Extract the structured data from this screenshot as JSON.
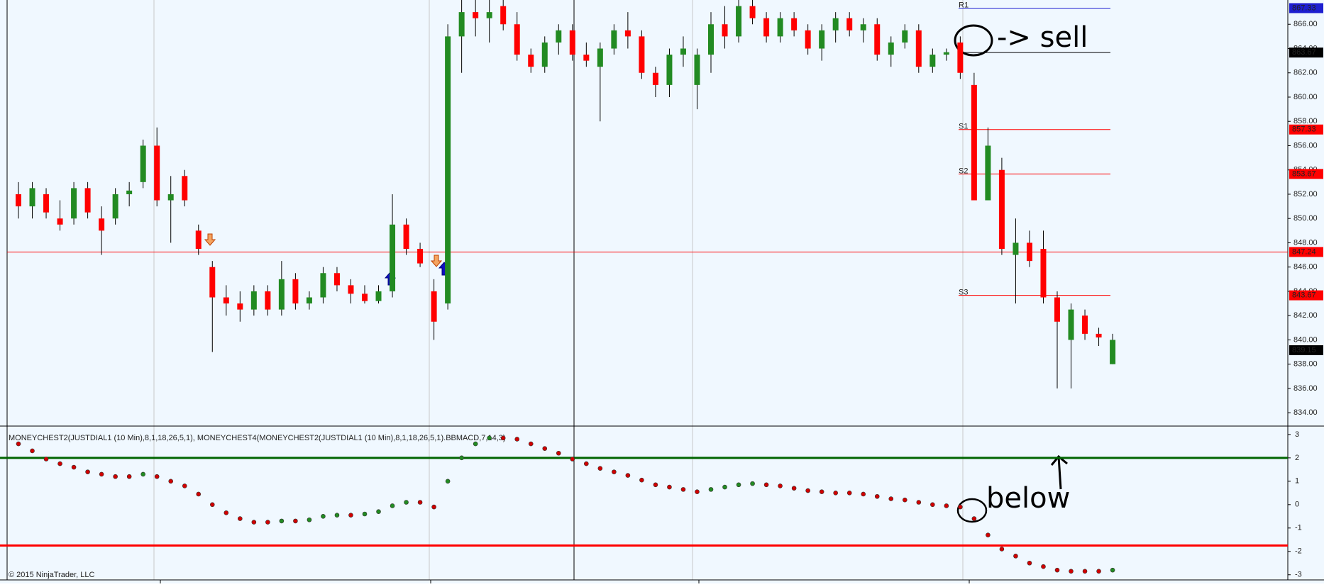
{
  "chart_data": [
    {
      "type": "candlestick",
      "open": [
        852,
        851,
        852,
        850,
        850,
        852.5,
        850,
        850,
        852,
        853,
        856,
        851.5,
        853.5,
        849,
        846,
        843.5,
        843,
        842.5,
        844,
        842.5,
        845,
        843,
        843.5,
        845.5,
        844.5,
        843.8,
        843.2,
        844,
        849.5,
        847.5,
        844,
        843,
        865,
        867,
        866.5,
        867.5,
        866,
        863.5,
        862.5,
        864.5,
        865.5,
        863.5,
        862.5,
        864,
        865.5,
        865,
        862,
        861,
        863.5,
        861,
        863.5,
        866,
        865,
        867.5,
        866.5,
        865,
        866.5,
        865.5,
        864,
        865.5,
        866.5,
        865.5,
        866,
        863.5,
        864.5,
        865.5,
        862.5,
        863.5,
        864.5,
        861,
        851.5,
        854,
        847,
        848,
        847.5,
        843.5,
        840,
        842,
        840.5,
        838
      ],
      "high": [
        853,
        853,
        852.5,
        851.5,
        853,
        853,
        851,
        852.5,
        853,
        856.5,
        857.5,
        853.5,
        854,
        849.5,
        846.5,
        844.5,
        844,
        844.5,
        844.5,
        846.5,
        845.5,
        844,
        846,
        846,
        845,
        844.5,
        844.5,
        852,
        850,
        848,
        845,
        866,
        868,
        868,
        868,
        868,
        867,
        864,
        865,
        866,
        866,
        864.5,
        864.5,
        866,
        867,
        865.5,
        862.5,
        864,
        865,
        864,
        867,
        867.5,
        868,
        868,
        867,
        867,
        867,
        866,
        866,
        867,
        867,
        866.5,
        866.5,
        865,
        866,
        866,
        864,
        864,
        865,
        862,
        857.5,
        855,
        850,
        849,
        849,
        844,
        843,
        842.5,
        841,
        840.5
      ],
      "low": [
        850,
        850,
        850,
        849,
        849.5,
        850,
        847,
        849.5,
        851,
        852.5,
        851,
        848,
        851,
        847,
        839,
        842,
        841.5,
        842,
        842,
        842,
        842.5,
        842.5,
        843,
        844,
        843,
        843,
        843,
        843.5,
        847,
        846,
        840,
        842.5,
        862,
        865,
        864.5,
        865.5,
        863,
        862,
        862,
        863.5,
        863,
        862.5,
        858,
        863.5,
        864,
        861.5,
        860,
        860,
        862.5,
        859,
        862,
        864,
        864.5,
        866,
        864.5,
        864.5,
        865,
        863.5,
        863,
        864.5,
        865,
        864.5,
        863,
        862.5,
        864,
        862,
        862,
        863,
        861.5,
        851.5,
        851.5,
        847,
        843,
        846,
        843,
        836,
        836,
        840,
        839.5,
        838
      ],
      "close": [
        851,
        852.5,
        850.5,
        849.5,
        852.5,
        850.5,
        849,
        852,
        852.3,
        856,
        851.5,
        852,
        851.5,
        847.5,
        843.5,
        843,
        842.5,
        844,
        842.5,
        845,
        843,
        843.5,
        845.5,
        844.5,
        843.8,
        843.2,
        844,
        849.5,
        847.5,
        846.3,
        841.5,
        865,
        867,
        866.5,
        867,
        866,
        863.5,
        862.5,
        864.5,
        865.5,
        863.5,
        863,
        864,
        865.5,
        865,
        862,
        861,
        863.5,
        864,
        863.5,
        866,
        865,
        867.5,
        866.5,
        865,
        866.5,
        865.5,
        864,
        865.5,
        866.5,
        865.5,
        866,
        863.5,
        864.5,
        865.5,
        862.5,
        863.5,
        863.7,
        862,
        851.5,
        856,
        847.5,
        848,
        846.5,
        843.5,
        841.5,
        842.5,
        840.5,
        840.2,
        840
      ],
      "up_color": "#228b22",
      "down_color": "#ff0000",
      "ylim": [
        832.9,
        868.0
      ],
      "yticks": [
        {
          "value": 834,
          "label": "834.00"
        },
        {
          "value": 836,
          "label": "836.00"
        },
        {
          "value": 838,
          "label": "838.00"
        },
        {
          "value": 840,
          "label": "840.00"
        },
        {
          "value": 842,
          "label": "842.00"
        },
        {
          "value": 844,
          "label": "844.00"
        },
        {
          "value": 846,
          "label": "846.00"
        },
        {
          "value": 848,
          "label": "848.00"
        },
        {
          "value": 850,
          "label": "850.00"
        },
        {
          "value": 852,
          "label": "852.00"
        },
        {
          "value": 854,
          "label": "854.00"
        },
        {
          "value": 856,
          "label": "856.00"
        },
        {
          "value": 858,
          "label": "858.00"
        },
        {
          "value": 860,
          "label": "860.00"
        },
        {
          "value": 862,
          "label": "862.00"
        },
        {
          "value": 864,
          "label": "864.00"
        },
        {
          "value": 866,
          "label": "866.00"
        }
      ],
      "price_levels": [
        {
          "name": "R1",
          "value": 867.33,
          "color": "#1f1fd0"
        },
        {
          "value": 863.67,
          "color": "#000000"
        },
        {
          "name": "S1",
          "value": 857.33,
          "color": "#ff0000"
        },
        {
          "name": "S2",
          "value": 853.67,
          "color": "#ff0000"
        },
        {
          "name": "S3",
          "value": 843.67,
          "color": "#ff0000"
        }
      ],
      "horizontal_line": {
        "value": 847.24,
        "color": "#ff0000"
      },
      "last_price": 839.15,
      "annotations": [
        "-> sell"
      ]
    },
    {
      "type": "dots",
      "title": "MONEYCHEST2(JUSTDIAL1 (10 Min),8,1,18,26,5,1), MONEYCHEST4(MONEYCHEST2(JUSTDIAL1 (10 Min),8,1,18,26,5,1).BBMACD,7,14,3)",
      "values": [
        2.6,
        2.3,
        1.95,
        1.75,
        1.6,
        1.4,
        1.3,
        1.2,
        1.2,
        1.3,
        1.2,
        1.0,
        0.8,
        0.45,
        0.0,
        -0.35,
        -0.6,
        -0.75,
        -0.75,
        -0.7,
        -0.7,
        -0.65,
        -0.5,
        -0.45,
        -0.45,
        -0.4,
        -0.3,
        -0.05,
        0.1,
        0.1,
        -0.1,
        1.0,
        2.0,
        2.6,
        2.85,
        2.85,
        2.8,
        2.6,
        2.4,
        2.2,
        1.95,
        1.75,
        1.55,
        1.4,
        1.25,
        1.05,
        0.85,
        0.75,
        0.65,
        0.55,
        0.65,
        0.75,
        0.85,
        0.9,
        0.85,
        0.8,
        0.7,
        0.6,
        0.55,
        0.5,
        0.5,
        0.45,
        0.35,
        0.25,
        0.2,
        0.1,
        0.0,
        -0.05,
        -0.1,
        -0.6,
        -1.3,
        -1.9,
        -2.2,
        -2.5,
        -2.65,
        -2.8,
        -2.85,
        -2.85,
        -2.85,
        -2.8
      ],
      "up_color": "#228b22",
      "down_color": "#d00000",
      "ylim": [
        -3.22,
        3.36
      ],
      "yticks": [
        -3,
        -2,
        -1,
        0,
        1,
        2,
        3
      ],
      "levels": [
        {
          "value": 2,
          "color": "#006400"
        },
        {
          "value": -1.75,
          "color": "#ff0000"
        }
      ],
      "annotations": [
        "below"
      ],
      "footer": "© 2015 NinjaTrader, LLC"
    }
  ]
}
